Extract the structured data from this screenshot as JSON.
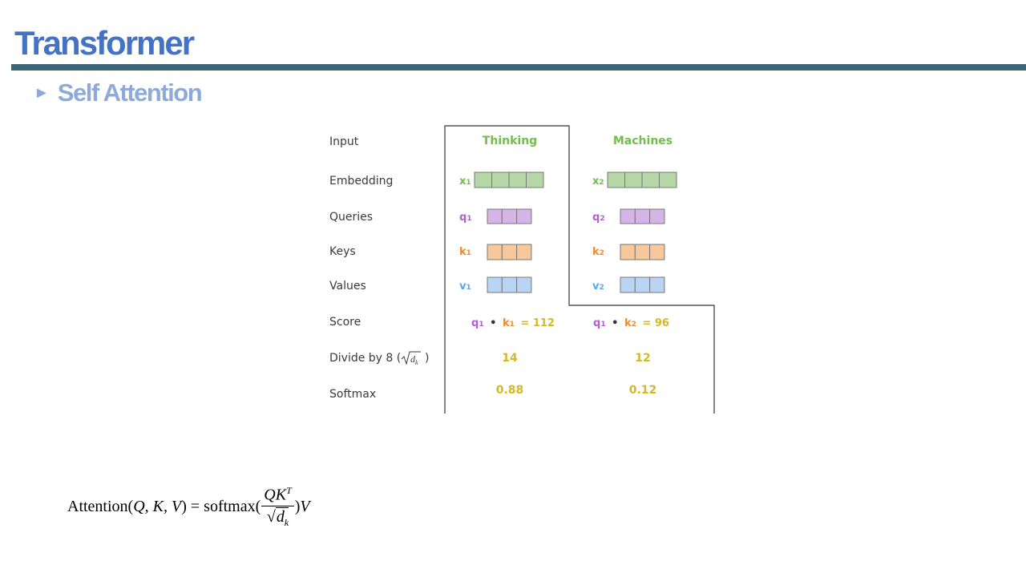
{
  "slide": {
    "title": "Transformer",
    "subtitle": "Self Attention",
    "bullet_glyph": "►"
  },
  "diagram": {
    "row_labels": {
      "input": "Input",
      "embedding": "Embedding",
      "queries": "Queries",
      "keys": "Keys",
      "values": "Values",
      "score": "Score",
      "divide": "Divide by 8 (",
      "divide_close": ")",
      "softmax": "Softmax"
    },
    "columns": [
      {
        "word": "Thinking",
        "x_tag": "x",
        "x_sub": "1",
        "q_tag": "q",
        "q_sub": "1",
        "k_tag": "k",
        "k_sub": "1",
        "v_tag": "v",
        "v_sub": "1",
        "score_q": "q",
        "score_q_sub": "1",
        "score_op": "•",
        "score_k": "k",
        "score_k_sub": "1",
        "score_eq": "= 112",
        "divided": "14",
        "softmax": "0.88"
      },
      {
        "word": "Machines",
        "x_tag": "x",
        "x_sub": "2",
        "q_tag": "q",
        "q_sub": "2",
        "k_tag": "k",
        "k_sub": "2",
        "v_tag": "v",
        "v_sub": "2",
        "score_q": "q",
        "score_q_sub": "1",
        "score_op": "•",
        "score_k": "k",
        "score_k_sub": "2",
        "score_eq": "= 96",
        "divided": "12",
        "softmax": "0.12"
      }
    ],
    "colors": {
      "embedding": "#b6d7a8",
      "query": "#d5b5e8",
      "key": "#f7c89b",
      "value": "#b9d5f5",
      "x_label": "#6fbf4a",
      "q_label": "#b15dd8",
      "k_label": "#ef8a2e",
      "v_label": "#5aa7ec",
      "number": "#d4b825",
      "border": "#333333"
    }
  },
  "formula": {
    "lhs": "Attention(",
    "args": "Q, K, V",
    "rhs_open": ") = softmax(",
    "numerator": "QK",
    "numerator_sup": "T",
    "denominator_sym": "d",
    "denominator_sub": "k",
    "close": ")",
    "tail": "V"
  }
}
